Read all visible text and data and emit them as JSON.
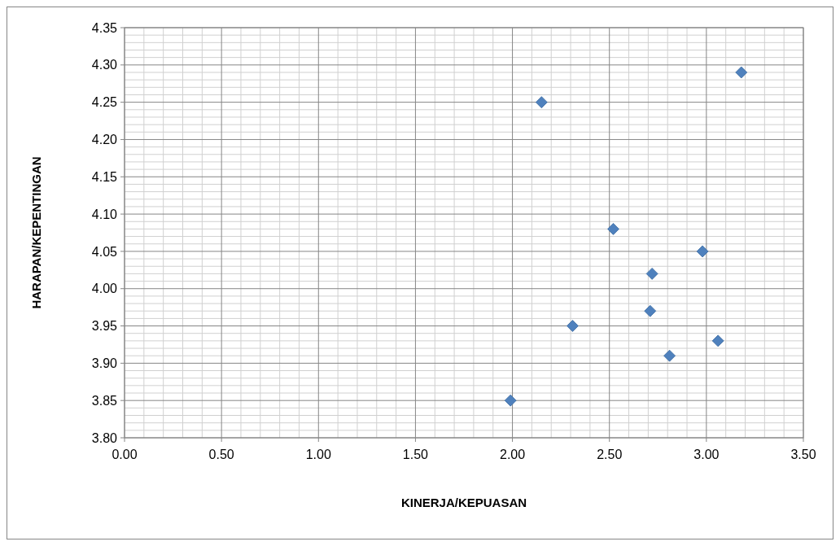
{
  "chart_data": {
    "type": "scatter",
    "xlabel": "KINERJA/KEPUASAN",
    "ylabel": "HARAPAN/KEPENTINGAN",
    "x": [
      3.18,
      2.15,
      2.52,
      2.98,
      2.72,
      2.71,
      2.31,
      3.06,
      2.81,
      1.99
    ],
    "series": [
      {
        "color": "#4f81bd",
        "values": [
          4.29,
          4.25,
          4.08,
          4.05,
          4.02,
          3.97,
          3.95,
          3.93,
          3.91,
          3.85
        ]
      }
    ],
    "xlim": [
      0,
      3.5
    ],
    "xticks": [
      {
        "value": 0,
        "label": "0.00"
      },
      {
        "value": 0.5,
        "label": "0.50"
      },
      {
        "value": 1,
        "label": "1.00"
      },
      {
        "value": 1.5,
        "label": "1.50"
      },
      {
        "value": 2,
        "label": "2.00"
      },
      {
        "value": 2.5,
        "label": "2.50"
      },
      {
        "value": 3,
        "label": "3.00"
      },
      {
        "value": 3.5,
        "label": "3.50"
      }
    ],
    "ylim": [
      3.8,
      4.35
    ],
    "yticks": [
      {
        "value": 3.8,
        "label": "3.80"
      },
      {
        "value": 3.85,
        "label": "3.85"
      },
      {
        "value": 3.9,
        "label": "3.90"
      },
      {
        "value": 3.95,
        "label": "3.95"
      },
      {
        "value": 4,
        "label": "4.00"
      },
      {
        "value": 4.05,
        "label": "4.05"
      },
      {
        "value": 4.1,
        "label": "4.10"
      },
      {
        "value": 4.15,
        "label": "4.15"
      },
      {
        "value": 4.2,
        "label": "4.20"
      },
      {
        "value": 4.25,
        "label": "4.25"
      },
      {
        "value": 4.3,
        "label": "4.30"
      },
      {
        "value": 4.35,
        "label": "4.35"
      }
    ],
    "grid": true,
    "marker": "diamond"
  }
}
